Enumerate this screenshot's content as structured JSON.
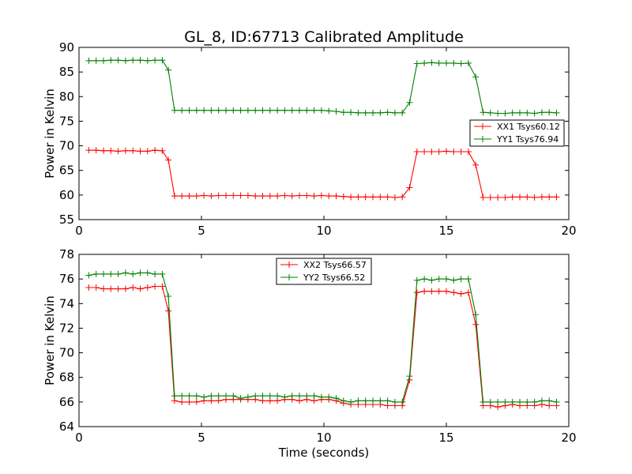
{
  "title": "GL_8, ID:67713 Calibrated Amplitude",
  "chart_data": [
    {
      "type": "line",
      "title": "GL_8, ID:67713 Calibrated Amplitude",
      "xlabel": "",
      "ylabel": "Power in Kelvin",
      "xlim": [
        0,
        20
      ],
      "ylim": [
        55,
        90
      ],
      "xticks": [
        "0",
        "5",
        "10",
        "15",
        "20"
      ],
      "yticks": [
        "55",
        "60",
        "65",
        "70",
        "75",
        "80",
        "85",
        "90"
      ],
      "legend_position": "center-right",
      "grid": false,
      "x": [
        0.4,
        0.7,
        1.0,
        1.3,
        1.6,
        1.9,
        2.2,
        2.5,
        2.8,
        3.1,
        3.4,
        3.65,
        3.9,
        4.2,
        4.5,
        4.8,
        5.1,
        5.4,
        5.7,
        6.0,
        6.3,
        6.6,
        6.9,
        7.2,
        7.5,
        7.8,
        8.1,
        8.4,
        8.7,
        9.0,
        9.3,
        9.6,
        9.9,
        10.2,
        10.5,
        10.8,
        11.1,
        11.4,
        11.7,
        12.0,
        12.3,
        12.6,
        12.9,
        13.2,
        13.5,
        13.8,
        14.1,
        14.4,
        14.7,
        15.0,
        15.3,
        15.6,
        15.9,
        16.2,
        16.5,
        16.8,
        17.1,
        17.4,
        17.7,
        18.0,
        18.3,
        18.6,
        18.9,
        19.2,
        19.5
      ],
      "series": [
        {
          "name": "XX1 Tsys60.12",
          "color": "#ff0000",
          "values": [
            69.1,
            69.1,
            69.0,
            69.0,
            68.9,
            69.0,
            69.0,
            68.9,
            68.9,
            69.1,
            69.0,
            67.1,
            59.8,
            59.8,
            59.8,
            59.8,
            59.9,
            59.8,
            59.9,
            59.9,
            59.9,
            59.9,
            59.9,
            59.8,
            59.8,
            59.8,
            59.8,
            59.9,
            59.8,
            59.9,
            59.9,
            59.8,
            59.9,
            59.8,
            59.8,
            59.7,
            59.6,
            59.6,
            59.6,
            59.6,
            59.6,
            59.6,
            59.5,
            59.6,
            61.5,
            68.8,
            68.8,
            68.8,
            68.8,
            68.9,
            68.8,
            68.8,
            68.8,
            66.1,
            59.5,
            59.5,
            59.5,
            59.5,
            59.6,
            59.6,
            59.6,
            59.5,
            59.6,
            59.6,
            59.6
          ]
        },
        {
          "name": "YY1 Tsys76.94",
          "color": "#008000",
          "values": [
            87.3,
            87.3,
            87.3,
            87.4,
            87.4,
            87.3,
            87.4,
            87.4,
            87.3,
            87.4,
            87.4,
            85.4,
            77.2,
            77.2,
            77.2,
            77.2,
            77.2,
            77.2,
            77.2,
            77.2,
            77.2,
            77.2,
            77.2,
            77.2,
            77.2,
            77.2,
            77.2,
            77.2,
            77.2,
            77.2,
            77.2,
            77.2,
            77.2,
            77.1,
            77.0,
            76.8,
            76.8,
            76.7,
            76.7,
            76.7,
            76.7,
            76.8,
            76.7,
            76.7,
            78.8,
            86.7,
            86.8,
            86.9,
            86.8,
            86.8,
            86.8,
            86.7,
            86.8,
            84.0,
            76.8,
            76.7,
            76.6,
            76.6,
            76.7,
            76.7,
            76.7,
            76.6,
            76.8,
            76.8,
            76.7
          ]
        }
      ]
    },
    {
      "type": "line",
      "title": "",
      "xlabel": "Time (seconds)",
      "ylabel": "Power in Kelvin",
      "xlim": [
        0,
        20
      ],
      "ylim": [
        64,
        78
      ],
      "xticks": [
        "0",
        "5",
        "10",
        "15",
        "20"
      ],
      "yticks": [
        "64",
        "66",
        "68",
        "70",
        "72",
        "74",
        "76",
        "78"
      ],
      "legend_position": "top-center",
      "grid": false,
      "x": [
        0.4,
        0.7,
        1.0,
        1.3,
        1.6,
        1.9,
        2.2,
        2.5,
        2.8,
        3.1,
        3.4,
        3.65,
        3.9,
        4.2,
        4.5,
        4.8,
        5.1,
        5.4,
        5.7,
        6.0,
        6.3,
        6.6,
        6.9,
        7.2,
        7.5,
        7.8,
        8.1,
        8.4,
        8.7,
        9.0,
        9.3,
        9.6,
        9.9,
        10.2,
        10.5,
        10.8,
        11.1,
        11.4,
        11.7,
        12.0,
        12.3,
        12.6,
        12.9,
        13.2,
        13.5,
        13.8,
        14.1,
        14.4,
        14.7,
        15.0,
        15.3,
        15.6,
        15.9,
        16.2,
        16.5,
        16.8,
        17.1,
        17.4,
        17.7,
        18.0,
        18.3,
        18.6,
        18.9,
        19.2,
        19.5
      ],
      "series": [
        {
          "name": "XX2 Tsys66.57",
          "color": "#ff0000",
          "values": [
            75.3,
            75.3,
            75.2,
            75.2,
            75.2,
            75.2,
            75.3,
            75.2,
            75.3,
            75.4,
            75.4,
            73.4,
            66.1,
            66.0,
            66.0,
            66.0,
            66.1,
            66.1,
            66.1,
            66.2,
            66.2,
            66.2,
            66.2,
            66.2,
            66.1,
            66.1,
            66.1,
            66.2,
            66.2,
            66.1,
            66.2,
            66.1,
            66.2,
            66.2,
            66.1,
            65.9,
            65.8,
            65.8,
            65.8,
            65.8,
            65.8,
            65.7,
            65.7,
            65.7,
            67.8,
            74.9,
            75.0,
            75.0,
            75.0,
            75.0,
            74.9,
            74.8,
            74.9,
            72.3,
            65.7,
            65.7,
            65.6,
            65.7,
            65.8,
            65.7,
            65.7,
            65.7,
            65.8,
            65.7,
            65.7
          ]
        },
        {
          "name": "YY2 Tsys66.52",
          "color": "#008000",
          "values": [
            76.3,
            76.4,
            76.4,
            76.4,
            76.4,
            76.5,
            76.4,
            76.5,
            76.5,
            76.4,
            76.4,
            74.6,
            66.5,
            66.5,
            66.5,
            66.5,
            66.4,
            66.5,
            66.5,
            66.5,
            66.5,
            66.3,
            66.4,
            66.5,
            66.5,
            66.5,
            66.5,
            66.4,
            66.5,
            66.5,
            66.5,
            66.5,
            66.4,
            66.4,
            66.3,
            66.1,
            66.0,
            66.1,
            66.1,
            66.1,
            66.1,
            66.1,
            66.0,
            66.0,
            68.1,
            75.9,
            76.0,
            75.9,
            76.0,
            76.0,
            75.9,
            76.0,
            76.0,
            73.1,
            66.0,
            66.0,
            66.0,
            66.0,
            66.0,
            66.0,
            66.0,
            66.0,
            66.1,
            66.1,
            66.0
          ]
        }
      ]
    }
  ]
}
